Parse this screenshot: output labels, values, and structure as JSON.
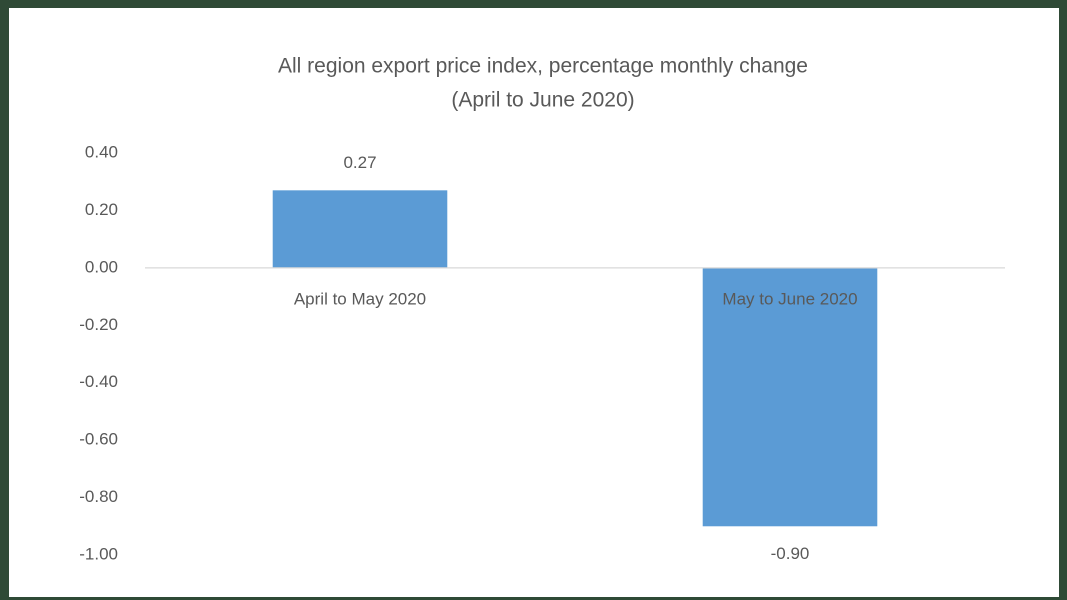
{
  "chart_data": {
    "type": "bar",
    "title": "All region export price index, percentage monthly change",
    "subtitle": "(April to June 2020)",
    "categories": [
      "April to May 2020",
      "May to June 2020"
    ],
    "values": [
      0.27,
      -0.9
    ],
    "value_labels": [
      "0.27",
      "-0.90"
    ],
    "color": "#5b9bd5",
    "ylim": [
      -1.0,
      0.4
    ],
    "yticks": [
      {
        "value": 0.4,
        "label": "0.40"
      },
      {
        "value": 0.2,
        "label": "0.20"
      },
      {
        "value": 0,
        "label": "0.00"
      },
      {
        "value": -0.2,
        "label": "-0.20"
      },
      {
        "value": -0.4,
        "label": "-0.40"
      },
      {
        "value": -0.6,
        "label": "-0.60"
      },
      {
        "value": -0.8,
        "label": "-0.80"
      },
      {
        "value": -1.0,
        "label": "-1.00"
      }
    ],
    "grid": false
  }
}
